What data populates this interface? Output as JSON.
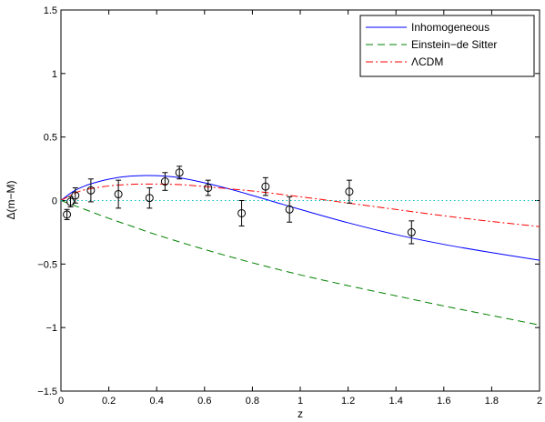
{
  "chart_data": {
    "type": "line",
    "title": "",
    "xlabel": "z",
    "ylabel": "Δ(m−M)",
    "xlim": [
      0,
      2
    ],
    "ylim": [
      -1.5,
      1.5
    ],
    "xticks": [
      0,
      0.2,
      0.4,
      0.6,
      0.8,
      1,
      1.2,
      1.4,
      1.6,
      1.8,
      2
    ],
    "xtick_labels": [
      "0",
      "0.2",
      "0.4",
      "0.6",
      "0.8",
      "1",
      "1.2",
      "1.4",
      "1.6",
      "1.8",
      "2"
    ],
    "yticks": [
      -1.5,
      -1,
      -0.5,
      0,
      0.5,
      1,
      1.5
    ],
    "ytick_labels": [
      "−1.5",
      "−1",
      "−0.5",
      "0",
      "0.5",
      "1",
      "1.5"
    ],
    "grid": false,
    "legend_position": "top-right",
    "series": [
      {
        "name": "Inhomogeneous",
        "color": "#0000ff",
        "style": "solid",
        "x": [
          0,
          0.05,
          0.1,
          0.15,
          0.2,
          0.25,
          0.3,
          0.35,
          0.4,
          0.45,
          0.5,
          0.6,
          0.7,
          0.8,
          0.9,
          1.0,
          1.2,
          1.4,
          1.6,
          1.8,
          2.0
        ],
        "y": [
          0,
          0.07,
          0.115,
          0.145,
          0.168,
          0.184,
          0.193,
          0.197,
          0.196,
          0.19,
          0.178,
          0.14,
          0.093,
          0.04,
          -0.015,
          -0.07,
          -0.175,
          -0.268,
          -0.345,
          -0.41,
          -0.47
        ]
      },
      {
        "name": "Einstein−de Sitter",
        "color": "#008000",
        "style": "dashed",
        "x": [
          0,
          0.1,
          0.2,
          0.3,
          0.4,
          0.6,
          0.8,
          1.0,
          1.2,
          1.4,
          1.6,
          1.8,
          2.0
        ],
        "y": [
          0,
          -0.07,
          -0.14,
          -0.205,
          -0.27,
          -0.385,
          -0.49,
          -0.585,
          -0.67,
          -0.75,
          -0.83,
          -0.905,
          -0.98
        ]
      },
      {
        "name": "ΛCDM",
        "color": "#ff0000",
        "style": "dashdot",
        "x": [
          0,
          0.05,
          0.1,
          0.2,
          0.3,
          0.4,
          0.5,
          0.6,
          0.8,
          1.0,
          1.2,
          1.4,
          1.6,
          1.8,
          2.0
        ],
        "y": [
          0,
          0.05,
          0.085,
          0.115,
          0.128,
          0.13,
          0.125,
          0.11,
          0.075,
          0.03,
          -0.02,
          -0.07,
          -0.12,
          -0.165,
          -0.205
        ]
      },
      {
        "name": "",
        "color": "#00bfbf",
        "style": "dotted",
        "x": [
          0,
          2
        ],
        "y": [
          0,
          0
        ]
      }
    ],
    "data_points": {
      "marker": "circle",
      "color": "#000000",
      "points": [
        {
          "x": 0.025,
          "y": -0.11,
          "err": 0.04
        },
        {
          "x": 0.04,
          "y": -0.01,
          "err": 0.04
        },
        {
          "x": 0.06,
          "y": 0.04,
          "err": 0.06
        },
        {
          "x": 0.125,
          "y": 0.08,
          "err": 0.09
        },
        {
          "x": 0.24,
          "y": 0.05,
          "err": 0.11
        },
        {
          "x": 0.37,
          "y": 0.02,
          "err": 0.08
        },
        {
          "x": 0.435,
          "y": 0.15,
          "err": 0.07
        },
        {
          "x": 0.495,
          "y": 0.22,
          "err": 0.05
        },
        {
          "x": 0.615,
          "y": 0.1,
          "err": 0.06
        },
        {
          "x": 0.755,
          "y": -0.1,
          "err": 0.1
        },
        {
          "x": 0.855,
          "y": 0.11,
          "err": 0.07
        },
        {
          "x": 0.955,
          "y": -0.07,
          "err": 0.1
        },
        {
          "x": 1.205,
          "y": 0.07,
          "err": 0.09
        },
        {
          "x": 1.465,
          "y": -0.25,
          "err": 0.09
        }
      ]
    }
  }
}
